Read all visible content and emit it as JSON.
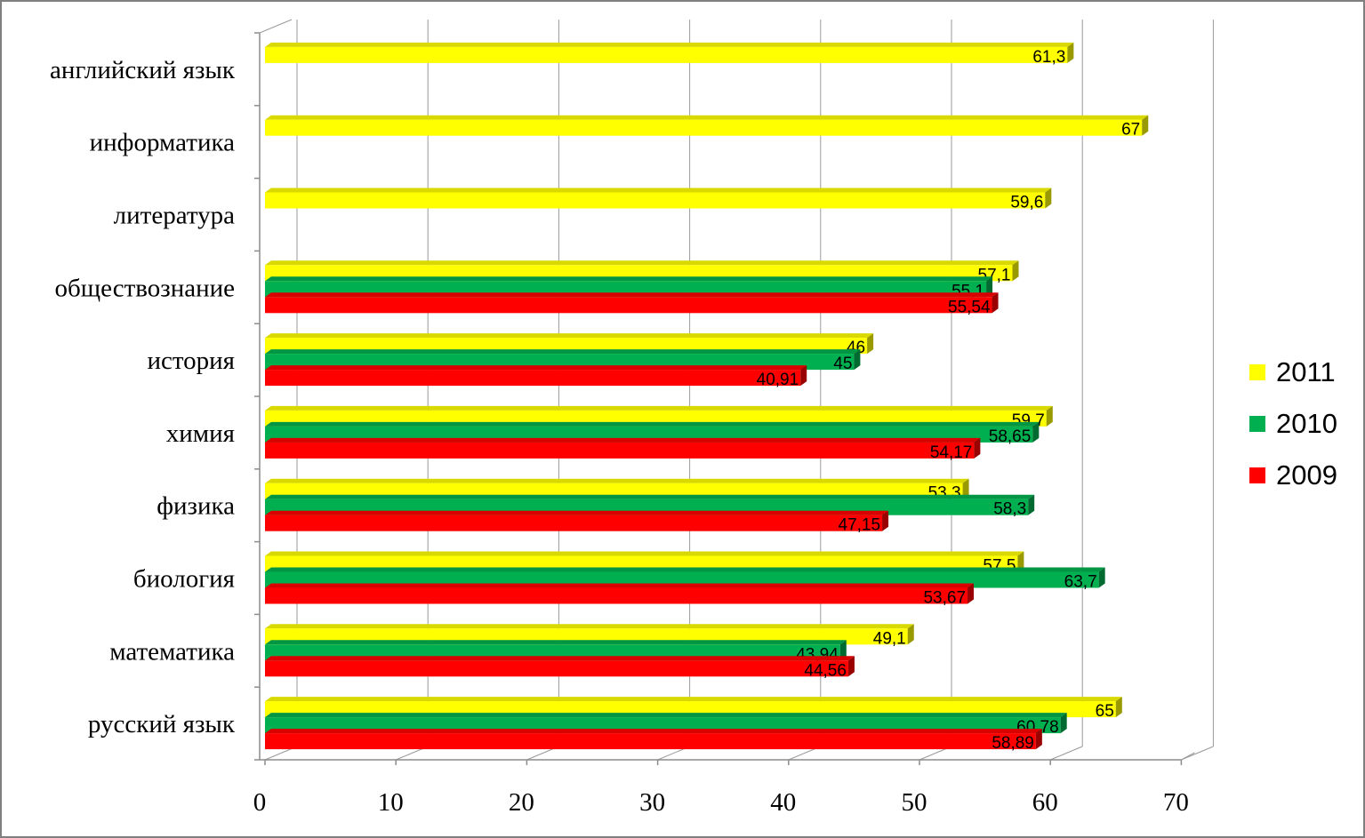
{
  "chart_data": {
    "type": "bar",
    "orientation": "horizontal",
    "categories": [
      "русский язык",
      "математика",
      "биология",
      "физика",
      "химия",
      "история",
      "обществознание",
      "литература",
      "информатика",
      "английский язык"
    ],
    "series": [
      {
        "name": "2009",
        "color": "#ff0000",
        "values": [
          58.89,
          44.56,
          53.67,
          47.15,
          54.17,
          40.91,
          55.54,
          null,
          null,
          null
        ],
        "labels": [
          "58,89",
          "44,56",
          "53,67",
          "47,15",
          "54,17",
          "40,91",
          "55,54",
          "",
          "",
          ""
        ]
      },
      {
        "name": "2010",
        "color": "#00b050",
        "values": [
          60.78,
          43.94,
          63.7,
          58.3,
          58.65,
          45,
          55.1,
          null,
          null,
          null
        ],
        "labels": [
          "60,78",
          "43,94",
          "63,7",
          "58,3",
          "58,65",
          "45",
          "55,1",
          "",
          "",
          ""
        ]
      },
      {
        "name": "2011",
        "color": "#ffff00",
        "values": [
          65,
          49.1,
          57.5,
          53.3,
          59.7,
          46,
          57.1,
          59.6,
          67,
          61.3
        ],
        "labels": [
          "65",
          "49,1",
          "57,5",
          "53,3",
          "59,7",
          "46",
          "57,1",
          "59,6",
          "67",
          "61,3"
        ]
      }
    ],
    "xlim": [
      0,
      70
    ],
    "x_ticks": [
      "0",
      "10",
      "20",
      "30",
      "40",
      "50",
      "60",
      "70"
    ],
    "grid": "vertical",
    "legend_position": "right"
  }
}
